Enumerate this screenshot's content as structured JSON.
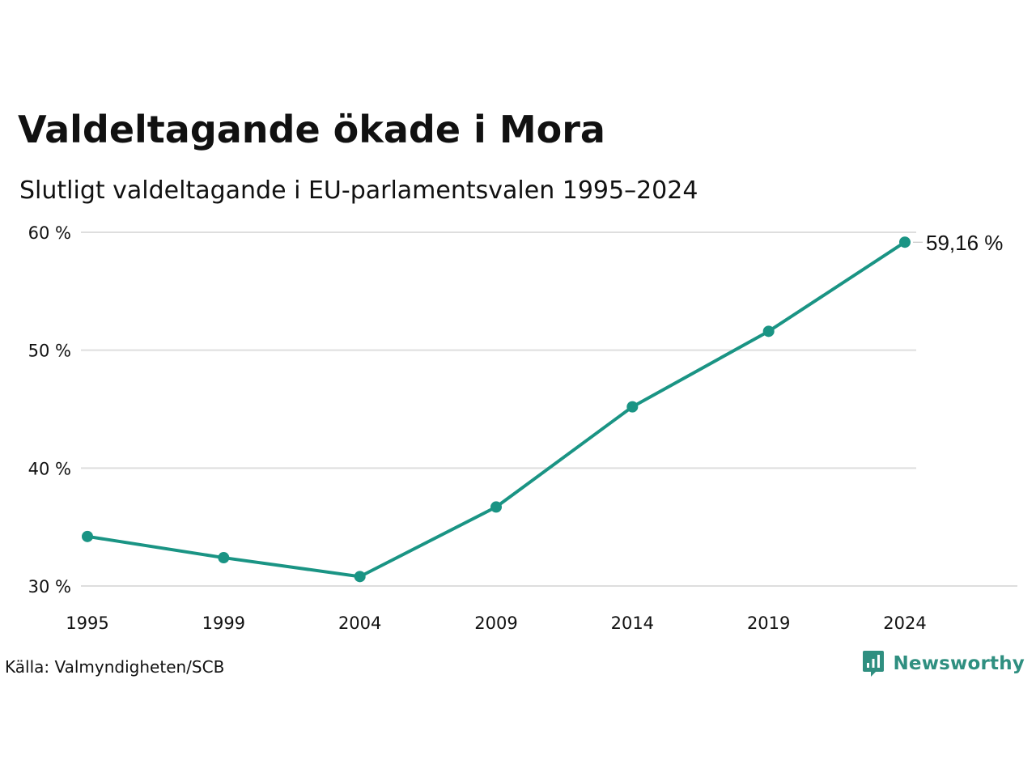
{
  "title": "Valdeltagande ökade i Mora",
  "subtitle": "Slutligt valdeltagande i EU-parlamentsvalen 1995–2024",
  "source": "Källa: Valmyndigheten/SCB",
  "brand": {
    "name": "Newsworthy",
    "icon": "newsworthy-logo-icon",
    "color": "#2f8f80"
  },
  "colors": {
    "line": "#1a9484",
    "grid": "#dedede",
    "text": "#111111"
  },
  "chart_data": {
    "type": "line",
    "x": [
      "1995",
      "1999",
      "2004",
      "2009",
      "2014",
      "2019",
      "2024"
    ],
    "series": [
      {
        "values": [
          34.2,
          32.4,
          30.8,
          36.7,
          45.2,
          51.6,
          59.16
        ]
      }
    ],
    "yticks": [
      30,
      40,
      50,
      60
    ],
    "ytick_labels": [
      "30 %",
      "40 %",
      "50 %",
      "60 %"
    ],
    "ylim": [
      30,
      60
    ],
    "grid": "horizontal",
    "last_value_label": "59,16 %",
    "xlabel": "",
    "ylabel": ""
  }
}
